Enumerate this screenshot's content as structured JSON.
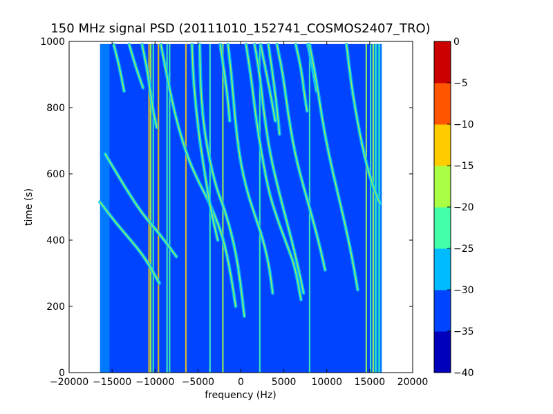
{
  "chart_data": {
    "type": "heatmap",
    "title": "150 MHz signal PSD (20111010_152741_COSMOS2407_TRO)",
    "xlabel": "frequency (Hz)",
    "ylabel": "time (s)",
    "xlim": [
      -20000,
      20000
    ],
    "ylim": [
      0,
      1000
    ],
    "x_ticks": [
      "−20000",
      "−15000",
      "−10000",
      "−5000",
      "0",
      "5000",
      "10000",
      "15000",
      "20000"
    ],
    "y_ticks": [
      "0",
      "200",
      "400",
      "600",
      "800",
      "1000"
    ],
    "data_extent": {
      "x": [
        -16400,
        16400
      ],
      "y": [
        0,
        992
      ]
    },
    "background_level": -32.5,
    "colorbar": {
      "ticks": [
        "0",
        "−5",
        "−10",
        "−15",
        "−20",
        "−25",
        "−30",
        "−35",
        "−40"
      ],
      "levels": [
        -40,
        -35,
        -30,
        -25,
        -20,
        -15,
        -10,
        -5,
        0
      ],
      "colors": [
        "#0000bb",
        "#0044ff",
        "#00bbff",
        "#44ffaa",
        "#aaff44",
        "#ffcc00",
        "#ff5500",
        "#cc0000"
      ]
    },
    "series": [
      {
        "name": "",
        "points": [
          {
            "x": -15800,
            "y": 660
          },
          {
            "x": -13500,
            "y": 560
          },
          {
            "x": -11500,
            "y": 480
          },
          {
            "x": -9500,
            "y": 420
          },
          {
            "x": -7500,
            "y": 350
          }
        ]
      },
      {
        "name": "",
        "points": [
          {
            "x": -16400,
            "y": 515
          },
          {
            "x": -14500,
            "y": 450
          },
          {
            "x": -12500,
            "y": 390
          },
          {
            "x": -11000,
            "y": 340
          },
          {
            "x": -9500,
            "y": 270
          }
        ]
      },
      {
        "name": "",
        "points": [
          {
            "x": -14800,
            "y": 990
          },
          {
            "x": -14200,
            "y": 930
          },
          {
            "x": -13600,
            "y": 850
          }
        ]
      },
      {
        "name": "",
        "points": [
          {
            "x": -13000,
            "y": 990
          },
          {
            "x": -12200,
            "y": 920
          },
          {
            "x": -11400,
            "y": 860
          }
        ]
      },
      {
        "name": "",
        "points": [
          {
            "x": -11500,
            "y": 990
          },
          {
            "x": -10800,
            "y": 900
          },
          {
            "x": -10300,
            "y": 800
          },
          {
            "x": -9800,
            "y": 740
          }
        ]
      },
      {
        "name": "",
        "points": [
          {
            "x": -9300,
            "y": 990
          },
          {
            "x": -8500,
            "y": 880
          },
          {
            "x": -7500,
            "y": 760
          },
          {
            "x": -6200,
            "y": 650
          },
          {
            "x": -5000,
            "y": 580
          },
          {
            "x": -3800,
            "y": 520
          },
          {
            "x": -2800,
            "y": 460
          },
          {
            "x": -1900,
            "y": 390
          },
          {
            "x": -1200,
            "y": 300
          },
          {
            "x": -600,
            "y": 200
          }
        ]
      },
      {
        "name": "",
        "points": [
          {
            "x": -4800,
            "y": 990
          },
          {
            "x": -4700,
            "y": 870
          },
          {
            "x": -4400,
            "y": 760
          },
          {
            "x": -3800,
            "y": 660
          },
          {
            "x": -2900,
            "y": 560
          },
          {
            "x": -2000,
            "y": 500
          },
          {
            "x": -1200,
            "y": 430
          },
          {
            "x": -500,
            "y": 350
          },
          {
            "x": 0,
            "y": 260
          },
          {
            "x": 400,
            "y": 170
          }
        ]
      },
      {
        "name": "",
        "points": [
          {
            "x": -5700,
            "y": 990
          },
          {
            "x": -5500,
            "y": 870
          },
          {
            "x": -4900,
            "y": 720
          },
          {
            "x": -4200,
            "y": 600
          },
          {
            "x": -3500,
            "y": 490
          },
          {
            "x": -2700,
            "y": 400
          }
        ]
      },
      {
        "name": "",
        "points": [
          {
            "x": -2400,
            "y": 990
          },
          {
            "x": -1900,
            "y": 900
          },
          {
            "x": -1500,
            "y": 820
          },
          {
            "x": -1300,
            "y": 760
          }
        ]
      },
      {
        "name": "",
        "points": [
          {
            "x": -1500,
            "y": 990
          },
          {
            "x": -1100,
            "y": 900
          },
          {
            "x": -700,
            "y": 770
          },
          {
            "x": -100,
            "y": 640
          },
          {
            "x": 800,
            "y": 540
          },
          {
            "x": 1700,
            "y": 470
          },
          {
            "x": 2600,
            "y": 400
          },
          {
            "x": 3300,
            "y": 320
          },
          {
            "x": 3700,
            "y": 240
          }
        ]
      },
      {
        "name": "",
        "points": [
          {
            "x": 600,
            "y": 990
          },
          {
            "x": 1200,
            "y": 890
          },
          {
            "x": 1700,
            "y": 780
          },
          {
            "x": 2400,
            "y": 660
          },
          {
            "x": 3300,
            "y": 540
          },
          {
            "x": 4300,
            "y": 460
          },
          {
            "x": 5300,
            "y": 390
          },
          {
            "x": 6300,
            "y": 320
          },
          {
            "x": 7000,
            "y": 220
          }
        ]
      },
      {
        "name": "",
        "points": [
          {
            "x": 3200,
            "y": 990
          },
          {
            "x": 3700,
            "y": 900
          },
          {
            "x": 4200,
            "y": 800
          },
          {
            "x": 4500,
            "y": 720
          }
        ]
      },
      {
        "name": "",
        "points": [
          {
            "x": 2300,
            "y": 990
          },
          {
            "x": 3000,
            "y": 900
          },
          {
            "x": 3600,
            "y": 820
          },
          {
            "x": 4000,
            "y": 760
          }
        ]
      },
      {
        "name": "",
        "points": [
          {
            "x": 1600,
            "y": 990
          },
          {
            "x": 2200,
            "y": 900
          },
          {
            "x": 2700,
            "y": 780
          },
          {
            "x": 3400,
            "y": 660
          },
          {
            "x": 4300,
            "y": 560
          },
          {
            "x": 5300,
            "y": 460
          },
          {
            "x": 6400,
            "y": 350
          },
          {
            "x": 7300,
            "y": 240
          }
        ]
      },
      {
        "name": "",
        "points": [
          {
            "x": 6400,
            "y": 990
          },
          {
            "x": 7000,
            "y": 920
          },
          {
            "x": 7400,
            "y": 840
          },
          {
            "x": 7700,
            "y": 790
          }
        ]
      },
      {
        "name": "",
        "points": [
          {
            "x": 7800,
            "y": 990
          },
          {
            "x": 8300,
            "y": 930
          },
          {
            "x": 8800,
            "y": 850
          }
        ]
      },
      {
        "name": "",
        "points": [
          {
            "x": 4200,
            "y": 990
          },
          {
            "x": 4900,
            "y": 900
          },
          {
            "x": 5500,
            "y": 780
          },
          {
            "x": 6300,
            "y": 660
          },
          {
            "x": 7300,
            "y": 560
          },
          {
            "x": 8300,
            "y": 470
          },
          {
            "x": 9200,
            "y": 380
          },
          {
            "x": 9800,
            "y": 310
          }
        ]
      },
      {
        "name": "",
        "points": [
          {
            "x": 8000,
            "y": 990
          },
          {
            "x": 8800,
            "y": 880
          },
          {
            "x": 9500,
            "y": 760
          },
          {
            "x": 10300,
            "y": 650
          },
          {
            "x": 11300,
            "y": 540
          },
          {
            "x": 12200,
            "y": 440
          },
          {
            "x": 13000,
            "y": 340
          },
          {
            "x": 13600,
            "y": 250
          }
        ]
      },
      {
        "name": "",
        "points": [
          {
            "x": 12300,
            "y": 990
          },
          {
            "x": 12900,
            "y": 860
          },
          {
            "x": 13700,
            "y": 740
          },
          {
            "x": 14500,
            "y": 640
          },
          {
            "x": 15400,
            "y": 560
          },
          {
            "x": 16200,
            "y": 510
          }
        ]
      }
    ],
    "vertical_lines": [
      {
        "x": -10700,
        "level": -15
      },
      {
        "x": -10500,
        "level": -20
      },
      {
        "x": -10200,
        "level": -25
      },
      {
        "x": -9600,
        "level": -15
      },
      {
        "x": -8600,
        "level": -25
      },
      {
        "x": -8300,
        "level": -25
      },
      {
        "x": -6400,
        "level": -15
      },
      {
        "x": -3600,
        "level": -25
      },
      {
        "x": -2100,
        "level": -20
      },
      {
        "x": 2200,
        "level": -25
      },
      {
        "x": 8000,
        "level": -25
      },
      {
        "x": 14600,
        "level": -20
      },
      {
        "x": 15100,
        "level": -25
      },
      {
        "x": 15400,
        "level": -20
      },
      {
        "x": 15700,
        "level": -25
      },
      {
        "x": 16100,
        "level": -25
      }
    ]
  }
}
